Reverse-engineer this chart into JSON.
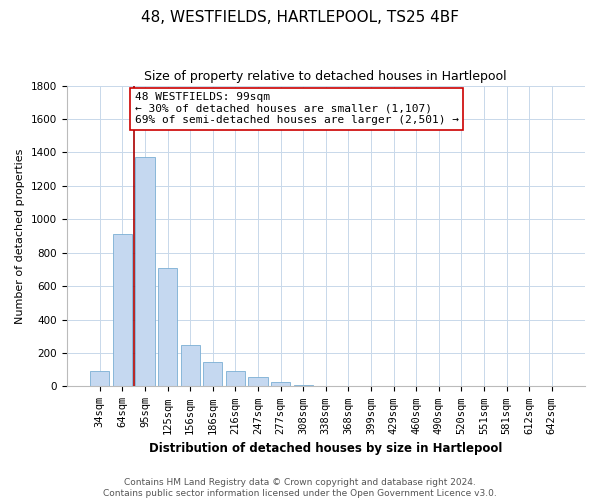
{
  "title": "48, WESTFIELDS, HARTLEPOOL, TS25 4BF",
  "subtitle": "Size of property relative to detached houses in Hartlepool",
  "xlabel": "Distribution of detached houses by size in Hartlepool",
  "ylabel": "Number of detached properties",
  "bar_labels": [
    "34sqm",
    "64sqm",
    "95sqm",
    "125sqm",
    "156sqm",
    "186sqm",
    "216sqm",
    "247sqm",
    "277sqm",
    "308sqm",
    "338sqm",
    "368sqm",
    "399sqm",
    "429sqm",
    "460sqm",
    "490sqm",
    "520sqm",
    "551sqm",
    "581sqm",
    "612sqm",
    "642sqm"
  ],
  "bar_values": [
    90,
    910,
    1370,
    710,
    250,
    145,
    90,
    55,
    25,
    10,
    5,
    3,
    0,
    0,
    0,
    3,
    0,
    0,
    0,
    0,
    0
  ],
  "bar_color": "#c5d8f0",
  "bar_edge_color": "#7bafd4",
  "vline_x_index": 2,
  "vline_color": "#aa0000",
  "annotation_text": "48 WESTFIELDS: 99sqm\n← 30% of detached houses are smaller (1,107)\n69% of semi-detached houses are larger (2,501) →",
  "annotation_box_edge": "#cc0000",
  "ylim": [
    0,
    1800
  ],
  "yticks": [
    0,
    200,
    400,
    600,
    800,
    1000,
    1200,
    1400,
    1600,
    1800
  ],
  "footnote": "Contains HM Land Registry data © Crown copyright and database right 2024.\nContains public sector information licensed under the Open Government Licence v3.0.",
  "title_fontsize": 11,
  "subtitle_fontsize": 9,
  "xlabel_fontsize": 8.5,
  "ylabel_fontsize": 8,
  "tick_fontsize": 7.5,
  "annotation_fontsize": 8,
  "footnote_fontsize": 6.5,
  "bg_color": "#ffffff",
  "grid_color": "#c8d8ea"
}
